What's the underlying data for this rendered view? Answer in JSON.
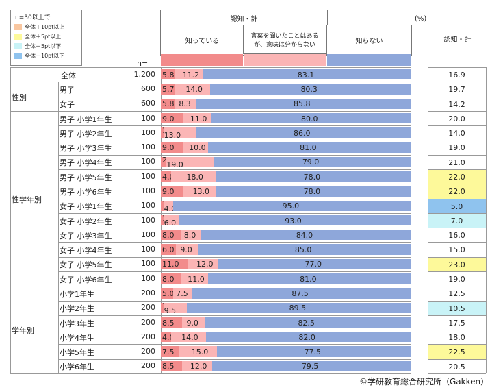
{
  "legend": {
    "title": "n=30以上で",
    "items": [
      {
        "label": "全体＋10pt以上",
        "color": "#f9c7a0"
      },
      {
        "label": "全体＋5pt以上",
        "color": "#fdf99a"
      },
      {
        "label": "全体－5pt以下",
        "color": "#c9f3f7"
      },
      {
        "label": "全体－10pt以下",
        "color": "#8fc3ee"
      }
    ]
  },
  "header": {
    "group_title": "認知・計",
    "col1": "知っている",
    "col2": "言葉を聞いたことはあるが、意味は分からない",
    "col3": "知らない",
    "n_label": "n=",
    "unit": "(%)",
    "right_title": "認知・計"
  },
  "colors": {
    "know": "#f28b8b",
    "heard": "#fbb5b5",
    "unknown": "#8ea7da"
  },
  "chart_data": {
    "type": "bar",
    "orientation": "horizontal-stacked-100",
    "series_names": [
      "知っている",
      "言葉を聞いたことはあるが、意味は分からない",
      "知らない"
    ],
    "rows": [
      {
        "group": "",
        "label": "全体",
        "n": "1,200",
        "values": [
          5.8,
          11.2,
          83.1
        ],
        "total": "16.9",
        "hl": ""
      },
      {
        "group": "性別",
        "label": "男子",
        "n": "600",
        "values": [
          5.7,
          14.0,
          80.3
        ],
        "total": "19.7",
        "hl": ""
      },
      {
        "group": "",
        "label": "女子",
        "n": "600",
        "values": [
          5.8,
          8.3,
          85.8
        ],
        "total": "14.2",
        "hl": ""
      },
      {
        "group": "性学年別",
        "label": "男子 小学1年生",
        "n": "100",
        "values": [
          9.0,
          11.0,
          80.0
        ],
        "total": "20.0",
        "hl": ""
      },
      {
        "group": "",
        "label": "男子 小学2年生",
        "n": "100",
        "values": [
          1.0,
          13.0,
          86.0
        ],
        "total": "14.0",
        "hl": ""
      },
      {
        "group": "",
        "label": "男子 小学3年生",
        "n": "100",
        "values": [
          9.0,
          10.0,
          81.0
        ],
        "total": "19.0",
        "hl": ""
      },
      {
        "group": "",
        "label": "男子 小学4年生",
        "n": "100",
        "values": [
          2.0,
          19.0,
          79.0
        ],
        "total": "21.0",
        "hl": ""
      },
      {
        "group": "",
        "label": "男子 小学5年生",
        "n": "100",
        "values": [
          4.0,
          18.0,
          78.0
        ],
        "total": "22.0",
        "hl": "plus5"
      },
      {
        "group": "",
        "label": "男子 小学6年生",
        "n": "100",
        "values": [
          9.0,
          13.0,
          78.0
        ],
        "total": "22.0",
        "hl": "plus5"
      },
      {
        "group": "",
        "label": "女子 小学1年生",
        "n": "100",
        "values": [
          1.0,
          4.0,
          95.0
        ],
        "total": "5.0",
        "hl": "minus10"
      },
      {
        "group": "",
        "label": "女子 小学2年生",
        "n": "100",
        "values": [
          1.0,
          6.0,
          93.0
        ],
        "total": "7.0",
        "hl": "minus5"
      },
      {
        "group": "",
        "label": "女子 小学3年生",
        "n": "100",
        "values": [
          8.0,
          8.0,
          84.0
        ],
        "total": "16.0",
        "hl": ""
      },
      {
        "group": "",
        "label": "女子 小学4年生",
        "n": "100",
        "values": [
          6.0,
          9.0,
          85.0
        ],
        "total": "15.0",
        "hl": ""
      },
      {
        "group": "",
        "label": "女子 小学5年生",
        "n": "100",
        "values": [
          11.0,
          12.0,
          77.0
        ],
        "total": "23.0",
        "hl": "plus5"
      },
      {
        "group": "",
        "label": "女子 小学6年生",
        "n": "100",
        "values": [
          8.0,
          11.0,
          81.0
        ],
        "total": "19.0",
        "hl": ""
      },
      {
        "group": "学年別",
        "label": "小学1年生",
        "n": "200",
        "values": [
          5.0,
          7.5,
          87.5
        ],
        "total": "12.5",
        "hl": ""
      },
      {
        "group": "",
        "label": "小学2年生",
        "n": "200",
        "values": [
          1.0,
          9.5,
          89.5
        ],
        "total": "10.5",
        "hl": "minus5"
      },
      {
        "group": "",
        "label": "小学3年生",
        "n": "200",
        "values": [
          8.5,
          9.0,
          82.5
        ],
        "total": "17.5",
        "hl": ""
      },
      {
        "group": "",
        "label": "小学4年生",
        "n": "200",
        "values": [
          4.0,
          14.0,
          82.0
        ],
        "total": "18.0",
        "hl": ""
      },
      {
        "group": "",
        "label": "小学5年生",
        "n": "200",
        "values": [
          7.5,
          15.0,
          77.5
        ],
        "total": "22.5",
        "hl": "plus5"
      },
      {
        "group": "",
        "label": "小学6年生",
        "n": "200",
        "values": [
          8.5,
          12.0,
          79.5
        ],
        "total": "20.5",
        "hl": ""
      }
    ]
  },
  "copyright": "©学研教育総合研究所（Gakken）"
}
